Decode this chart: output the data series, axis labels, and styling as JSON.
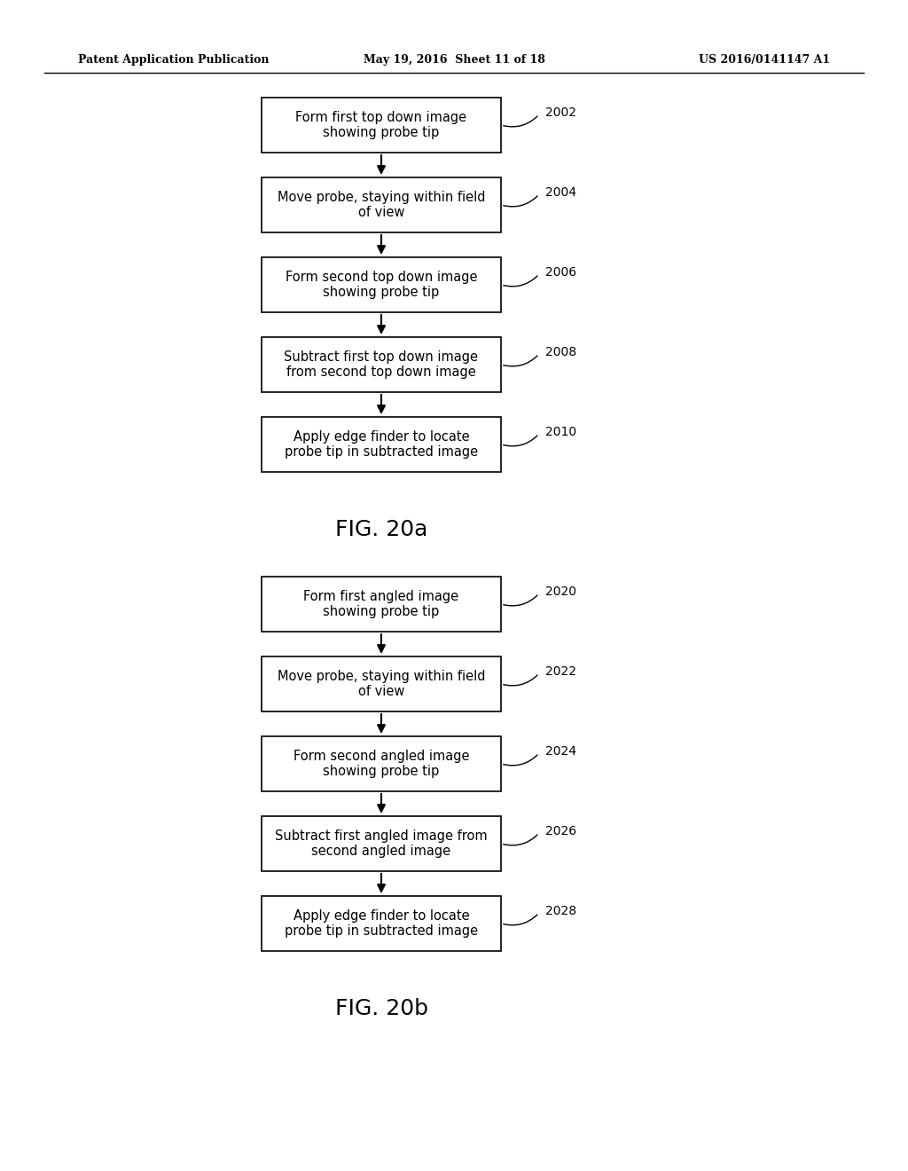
{
  "background_color": "#ffffff",
  "header_left": "Patent Application Publication",
  "header_mid": "May 19, 2016  Sheet 11 of 18",
  "header_right": "US 2016/0141147 A1",
  "fig_a_label": "FIG. 20a",
  "fig_b_label": "FIG. 20b",
  "diagram_a": {
    "boxes": [
      {
        "id": 0,
        "text": "Form first top down image\nshowing probe tip",
        "label": "2002"
      },
      {
        "id": 1,
        "text": "Move probe, staying within field\nof view",
        "label": "2004"
      },
      {
        "id": 2,
        "text": "Form second top down image\nshowing probe tip",
        "label": "2006"
      },
      {
        "id": 3,
        "text": "Subtract first top down image\nfrom second top down image",
        "label": "2008"
      },
      {
        "id": 4,
        "text": "Apply edge finder to locate\nprobe tip in subtracted image",
        "label": "2010"
      }
    ]
  },
  "diagram_b": {
    "boxes": [
      {
        "id": 0,
        "text": "Form first angled image\nshowing probe tip",
        "label": "2020"
      },
      {
        "id": 1,
        "text": "Move probe, staying within field\nof view",
        "label": "2022"
      },
      {
        "id": 2,
        "text": "Form second angled image\nshowing probe tip",
        "label": "2024"
      },
      {
        "id": 3,
        "text": "Subtract first angled image from\nsecond angled image",
        "label": "2026"
      },
      {
        "id": 4,
        "text": "Apply edge finder to locate\nprobe tip in subtracted image",
        "label": "2028"
      }
    ]
  },
  "box_color": "#ffffff",
  "box_edge_color": "#000000",
  "text_color": "#000000",
  "arrow_color": "#000000",
  "label_color": "#000000"
}
